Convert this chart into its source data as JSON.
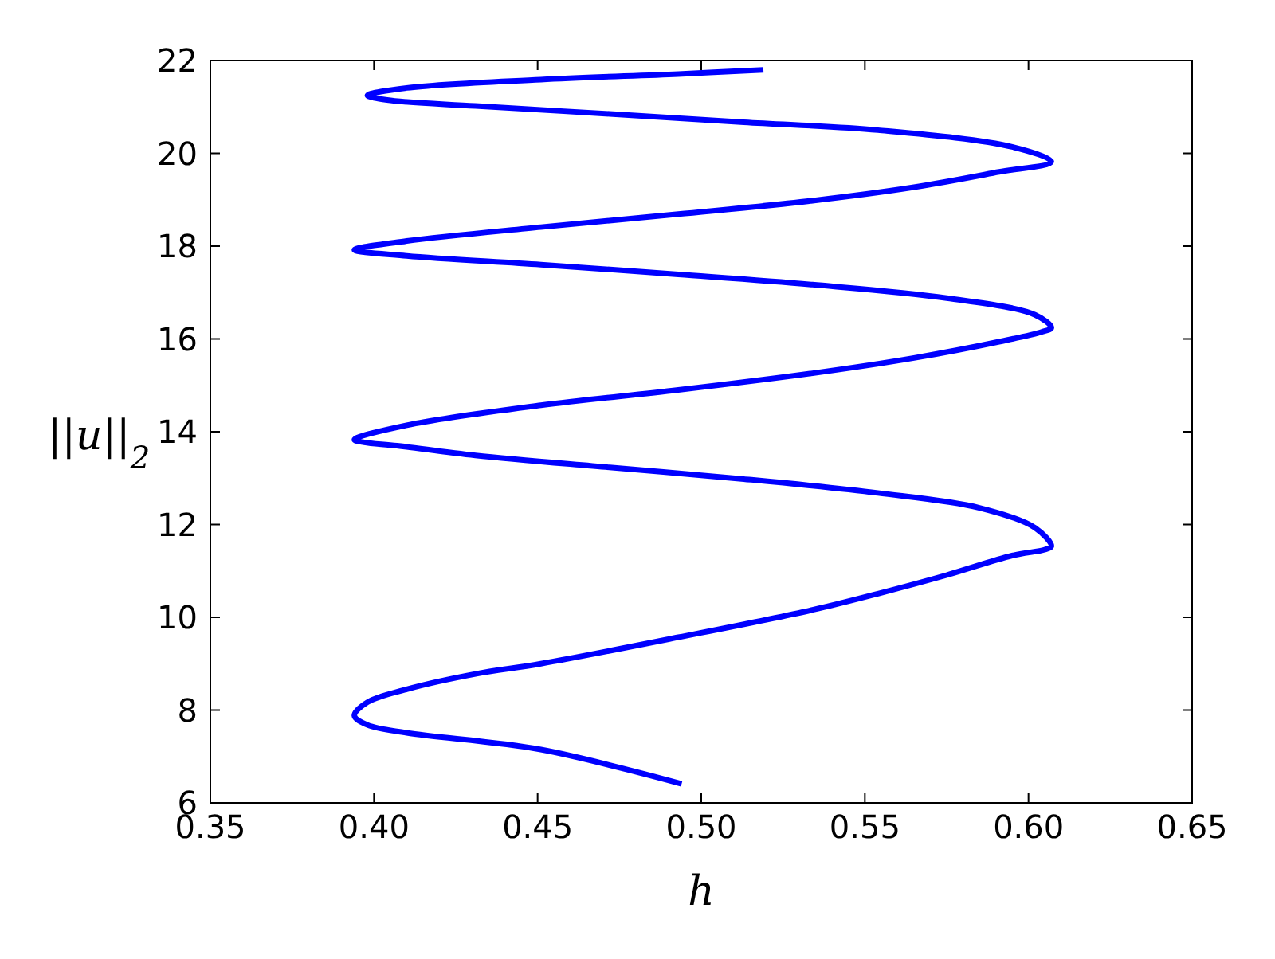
{
  "chart_data": {
    "type": "line",
    "xlabel": "h",
    "ylabel": "||u||$_{2}$",
    "xlim": [
      0.35,
      0.65
    ],
    "ylim": [
      6,
      22
    ],
    "xticks": [
      {
        "value": 0.35,
        "label": "0.35"
      },
      {
        "value": 0.4,
        "label": "0.40"
      },
      {
        "value": 0.45,
        "label": "0.45"
      },
      {
        "value": 0.5,
        "label": "0.50"
      },
      {
        "value": 0.55,
        "label": "0.55"
      },
      {
        "value": 0.6,
        "label": "0.60"
      },
      {
        "value": 0.65,
        "label": "0.65"
      }
    ],
    "yticks": [
      6,
      8,
      10,
      12,
      14,
      16,
      18,
      20,
      22
    ],
    "grid": false,
    "marker": "none",
    "line_style": "solid",
    "series": [
      {
        "color": "#0000ff",
        "x": [
          0.494,
          0.451,
          0.41,
          0.398,
          0.394,
          0.398,
          0.41,
          0.431,
          0.451,
          0.493,
          0.534,
          0.554,
          0.575,
          0.595,
          0.605,
          0.607,
          0.602,
          0.585,
          0.554,
          0.513,
          0.472,
          0.431,
          0.407,
          0.397,
          0.394,
          0.41,
          0.451,
          0.493,
          0.534,
          0.565,
          0.591,
          0.604,
          0.607,
          0.602,
          0.575,
          0.534,
          0.493,
          0.451,
          0.41,
          0.394,
          0.41,
          0.451,
          0.493,
          0.534,
          0.565,
          0.591,
          0.607,
          0.595,
          0.554,
          0.513,
          0.472,
          0.431,
          0.404,
          0.398,
          0.41,
          0.451,
          0.493,
          0.519
        ],
        "values": [
          6.41,
          7.15,
          7.51,
          7.68,
          7.88,
          8.17,
          8.45,
          8.78,
          9.0,
          9.57,
          10.16,
          10.51,
          10.91,
          11.33,
          11.46,
          11.53,
          11.93,
          12.36,
          12.68,
          12.98,
          13.23,
          13.49,
          13.7,
          13.77,
          13.83,
          14.14,
          14.57,
          14.9,
          15.26,
          15.59,
          15.94,
          16.15,
          16.24,
          16.52,
          16.88,
          17.17,
          17.39,
          17.6,
          17.79,
          17.92,
          18.11,
          18.41,
          18.69,
          18.98,
          19.27,
          19.6,
          19.82,
          20.14,
          20.5,
          20.67,
          20.85,
          21.02,
          21.15,
          21.25,
          21.41,
          21.59,
          21.71,
          21.8
        ]
      }
    ]
  }
}
